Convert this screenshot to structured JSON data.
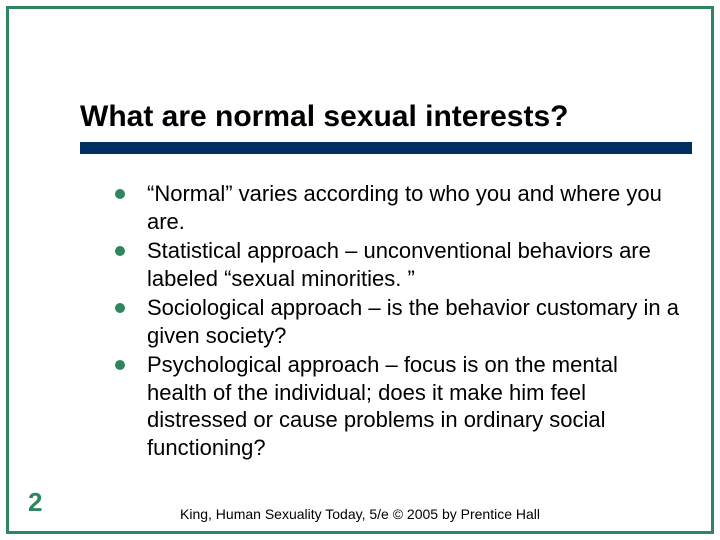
{
  "colors": {
    "accent": "#2e8560",
    "underline": "#003060",
    "text": "#000000",
    "background": "#ffffff"
  },
  "title": "What are normal sexual interests?",
  "bullets": [
    "“Normal” varies according to who you and where you are.",
    "Statistical approach – unconventional behaviors are labeled “sexual minorities. ”",
    "Sociological approach – is the behavior customary in a given society?",
    "Psychological approach – focus is on the mental health of the individual; does it make him feel distressed or cause problems in ordinary social functioning?"
  ],
  "slide_number": "2",
  "footer": "King, Human Sexuality Today, 5/e © 2005 by Prentice Hall",
  "typography": {
    "title_fontsize": 30,
    "title_weight": "bold",
    "bullet_fontsize": 22,
    "footer_fontsize": 14,
    "slidenum_fontsize": 26
  }
}
